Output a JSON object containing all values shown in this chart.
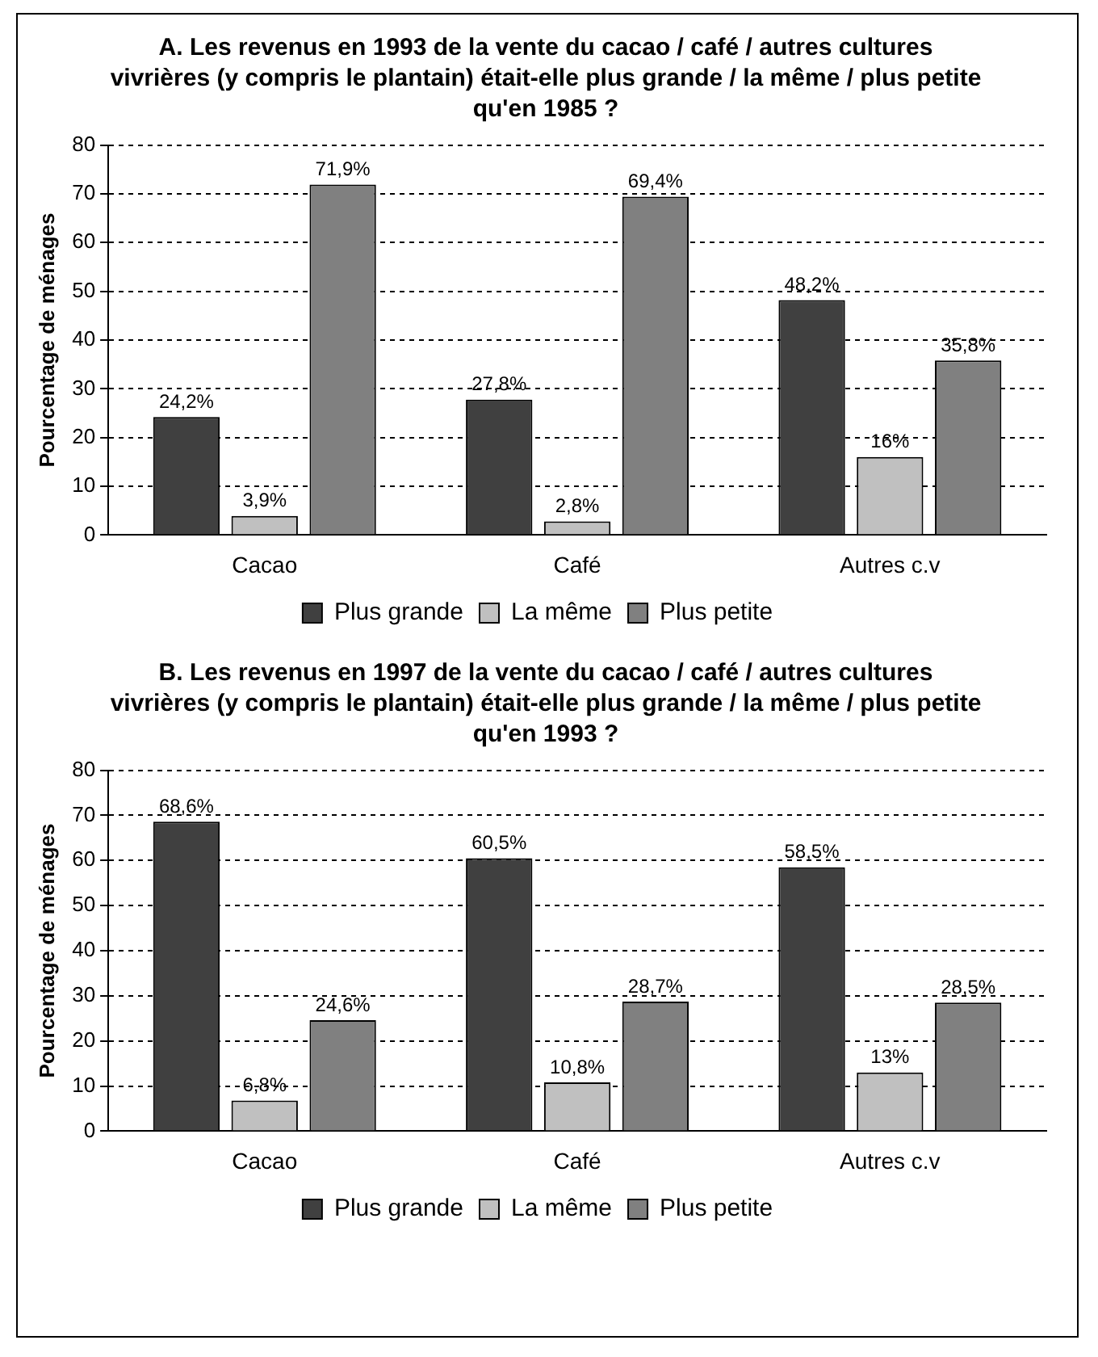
{
  "chart_data": [
    {
      "type": "bar",
      "title": "A. Les revenus en 1993 de la vente du cacao / café / autres cultures vivrières (y compris le plantain) était-elle plus grande / la même / plus petite qu'en 1985 ?",
      "ylabel": "Pourcentage de ménages",
      "categories": [
        "Cacao",
        "Café",
        "Autres c.v"
      ],
      "series": [
        {
          "name": "Plus grande",
          "color": "#404040",
          "values": [
            24.2,
            27.8,
            48.2
          ],
          "value_labels": [
            "24,2%",
            "27,8%",
            "48,2%"
          ]
        },
        {
          "name": "La même",
          "color": "#c0c0c0",
          "values": [
            3.9,
            2.8,
            16
          ],
          "value_labels": [
            "3,9%",
            "2,8%",
            "16%"
          ]
        },
        {
          "name": "Plus petite",
          "color": "#808080",
          "values": [
            71.9,
            69.4,
            35.8
          ],
          "value_labels": [
            "71,9%",
            "69,4%",
            "35,8%"
          ]
        }
      ],
      "ylim": [
        0,
        80
      ],
      "yticks": [
        0,
        10,
        20,
        30,
        40,
        50,
        60,
        70,
        80
      ],
      "grid": "y",
      "legend": "bottom"
    },
    {
      "type": "bar",
      "title": "B. Les revenus en 1997 de la vente du cacao / café / autres cultures vivrières (y compris le plantain) était-elle plus grande / la même / plus petite qu'en 1993 ?",
      "ylabel": "Pourcentage de ménages",
      "categories": [
        "Cacao",
        "Café",
        "Autres c.v"
      ],
      "series": [
        {
          "name": "Plus grande",
          "color": "#404040",
          "values": [
            68.6,
            60.5,
            58.5
          ],
          "value_labels": [
            "68,6%",
            "60,5%",
            "58,5%"
          ]
        },
        {
          "name": "La même",
          "color": "#c0c0c0",
          "values": [
            6.8,
            10.8,
            13
          ],
          "value_labels": [
            "6,8%",
            "10,8%",
            "13%"
          ]
        },
        {
          "name": "Plus petite",
          "color": "#808080",
          "values": [
            24.6,
            28.7,
            28.5
          ],
          "value_labels": [
            "24,6%",
            "28,7%",
            "28,5%"
          ]
        }
      ],
      "ylim": [
        0,
        80
      ],
      "yticks": [
        0,
        10,
        20,
        30,
        40,
        50,
        60,
        70,
        80
      ],
      "grid": "y",
      "legend": "bottom"
    }
  ]
}
